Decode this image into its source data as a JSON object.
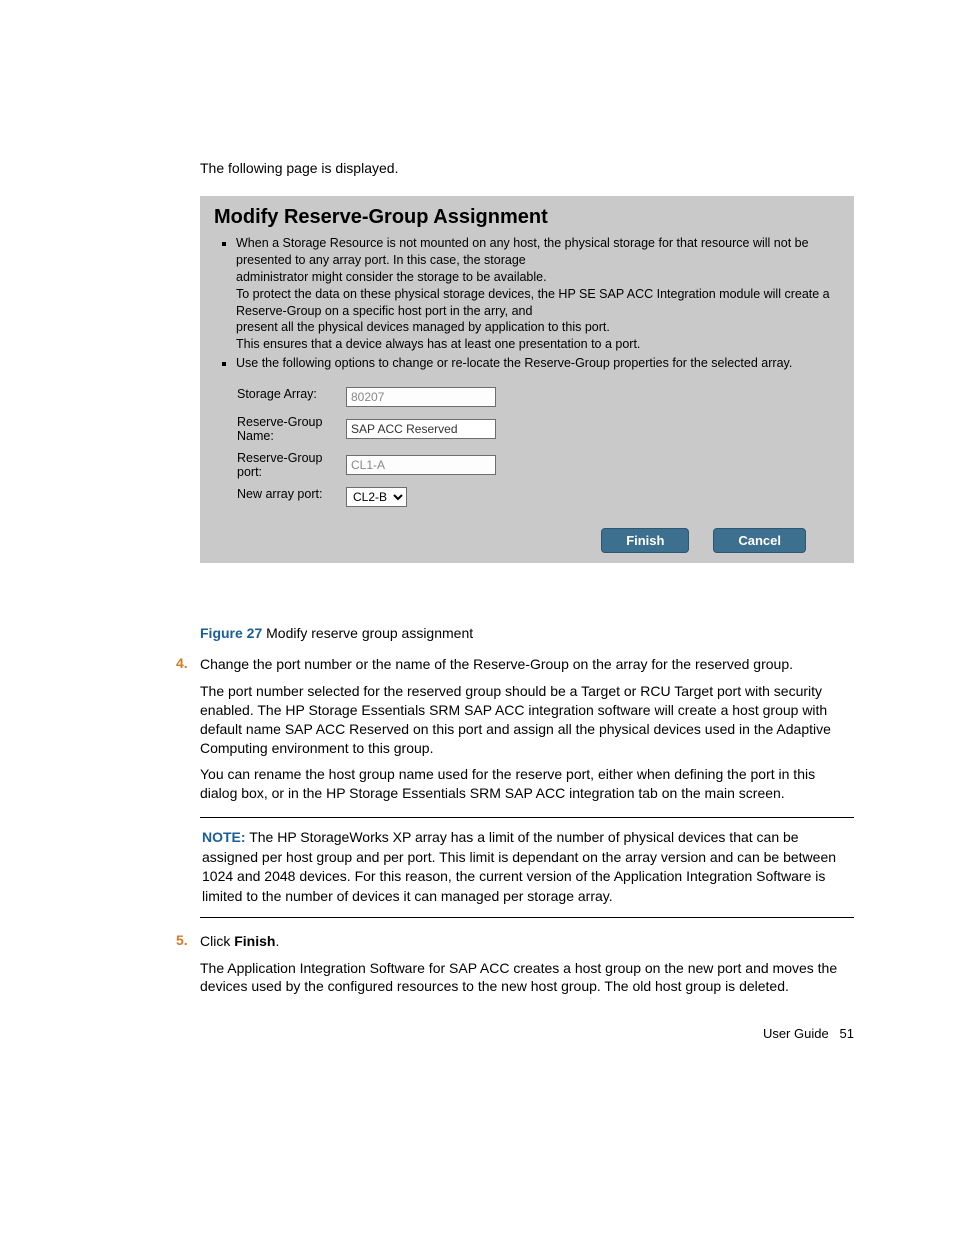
{
  "intro": "The following page is displayed.",
  "screenshot": {
    "title": "Modify Reserve-Group Assignment",
    "bullet1_line1": "When a Storage Resource is not mounted on any host, the physical storage for that resource will not be presented to any array port. In this case, the storage",
    "bullet1_line2": "administrator might consider the storage to be available.",
    "bullet1_line3": "To protect the data on these physical storage devices, the HP SE SAP ACC Integration module will create a Reserve-Group on a specific host port in the arry, and",
    "bullet1_line4": "present all the physical devices managed by application to this port.",
    "bullet1_line5": "This ensures that a device always has at least one presentation to a port.",
    "bullet2": "Use the following options to change or re-locate the Reserve-Group properties for the selected array.",
    "form": {
      "storage_array_label": "Storage Array:",
      "storage_array_value": "80207",
      "group_name_label": "Reserve-Group Name:",
      "group_name_value": "SAP ACC Reserved",
      "group_port_label": "Reserve-Group port:",
      "group_port_value": "CL1-A",
      "new_port_label": "New array port:",
      "new_port_value": "CL2-B"
    },
    "finish_button": "Finish",
    "cancel_button": "Cancel",
    "colors": {
      "panel_bg": "#c9c9c9",
      "button_bg": "#3d6f8e",
      "button_text": "#ffffff"
    }
  },
  "caption": {
    "figure_label": "Figure 27",
    "figure_text": "Modify reserve group assignment"
  },
  "steps": {
    "s4_num": "4.",
    "s4_p1": "Change the port number or the name of the Reserve-Group on the array for the reserved group.",
    "s4_p2": "The port number selected for the reserved group should be a Target or RCU Target port with security enabled. The HP Storage Essentials SRM SAP ACC integration software will create a host group with default name SAP ACC Reserved on this port and assign all the physical devices used in the Adaptive Computing environment to this group.",
    "s4_p3": "You can rename the host group name used for the reserve port, either when defining the port in this dialog box, or in the HP Storage Essentials SRM SAP ACC integration tab on the main screen.",
    "note_label": "NOTE:",
    "note_text": "The HP StorageWorks XP array has a limit of the number of physical devices that can be assigned per host group and per port. This limit is dependant on the array version and can be between 1024 and 2048 devices. For this reason, the current version of the Application Integration Software is limited to the number of devices it can managed per storage array.",
    "s5_num": "5.",
    "s5_p1a": "Click ",
    "s5_p1b": "Finish",
    "s5_p1c": ".",
    "s5_p2": "The Application Integration Software for SAP ACC creates a host group on the new port and moves the devices used by the configured resources to the new host group. The old host group is deleted."
  },
  "footer": {
    "label": "User Guide",
    "page": "51"
  }
}
